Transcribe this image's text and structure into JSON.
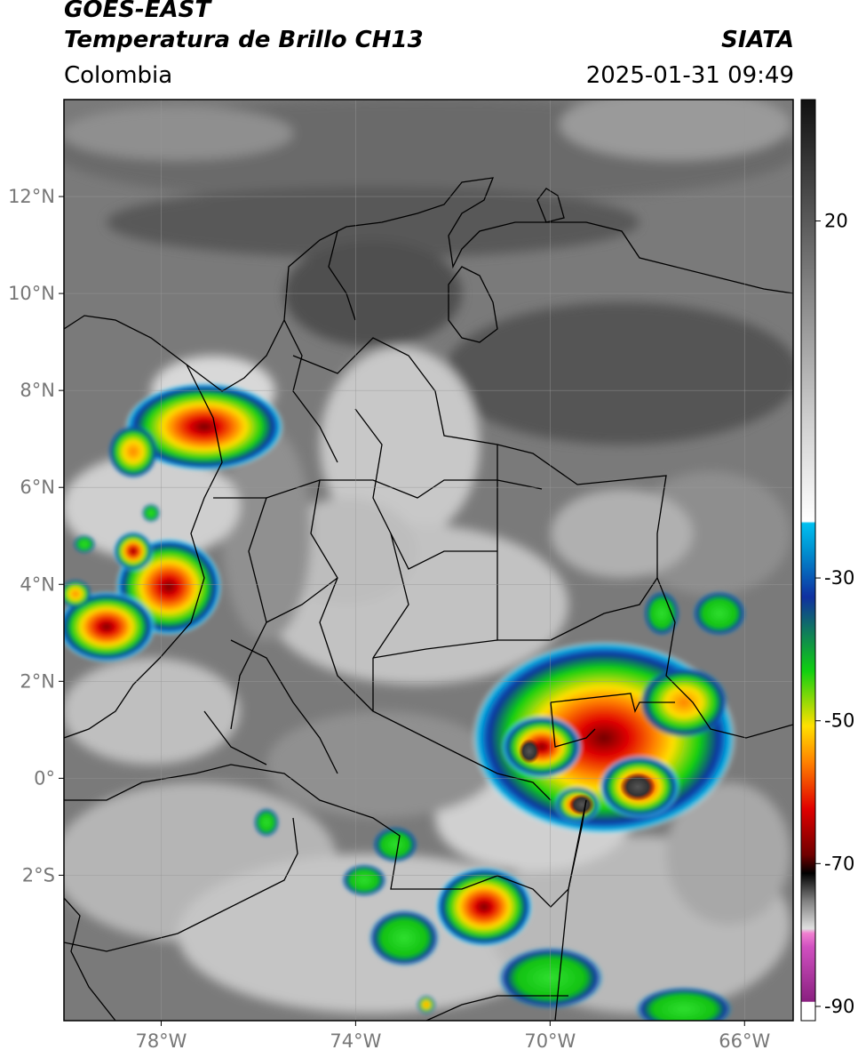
{
  "header": {
    "satellite": "GOES-EAST",
    "product": "Temperatura de Brillo CH13",
    "region": "Colombia",
    "source": "SIATA",
    "datetime": "2025-01-31 09:49"
  },
  "map": {
    "lon_range": [
      -80,
      -65
    ],
    "lat_range": [
      -5,
      14
    ],
    "lat_ticks": [
      {
        "value": 12,
        "label": "12°N"
      },
      {
        "value": 10,
        "label": "10°N"
      },
      {
        "value": 8,
        "label": "8°N"
      },
      {
        "value": 6,
        "label": "6°N"
      },
      {
        "value": 4,
        "label": "4°N"
      },
      {
        "value": 2,
        "label": "2°N"
      },
      {
        "value": 0,
        "label": "0°"
      },
      {
        "value": -2,
        "label": "2°S"
      }
    ],
    "lon_ticks": [
      {
        "value": -78,
        "label": "78°W"
      },
      {
        "value": -74,
        "label": "74°W"
      },
      {
        "value": -70,
        "label": "70°W"
      },
      {
        "value": -66,
        "label": "66°W"
      }
    ],
    "gridlines": true
  },
  "colorbar": {
    "range": [
      -92,
      37
    ],
    "ticks": [
      {
        "value": 20,
        "label": "20"
      },
      {
        "value": -30,
        "label": "-30"
      },
      {
        "value": -50,
        "label": "-50"
      },
      {
        "value": -70,
        "label": "-70"
      },
      {
        "value": -90,
        "label": "-90"
      }
    ],
    "colors": {
      "warm_dark": "#1a1a1a",
      "warm_light": "#f5f5f5",
      "cyan": "#00b4e6",
      "blue": "#1030a0",
      "green": "#10d010",
      "yellow": "#ffe000",
      "orange": "#ff8000",
      "red": "#e00000",
      "dark_red": "#700000",
      "magenta": "#d050c0"
    }
  }
}
